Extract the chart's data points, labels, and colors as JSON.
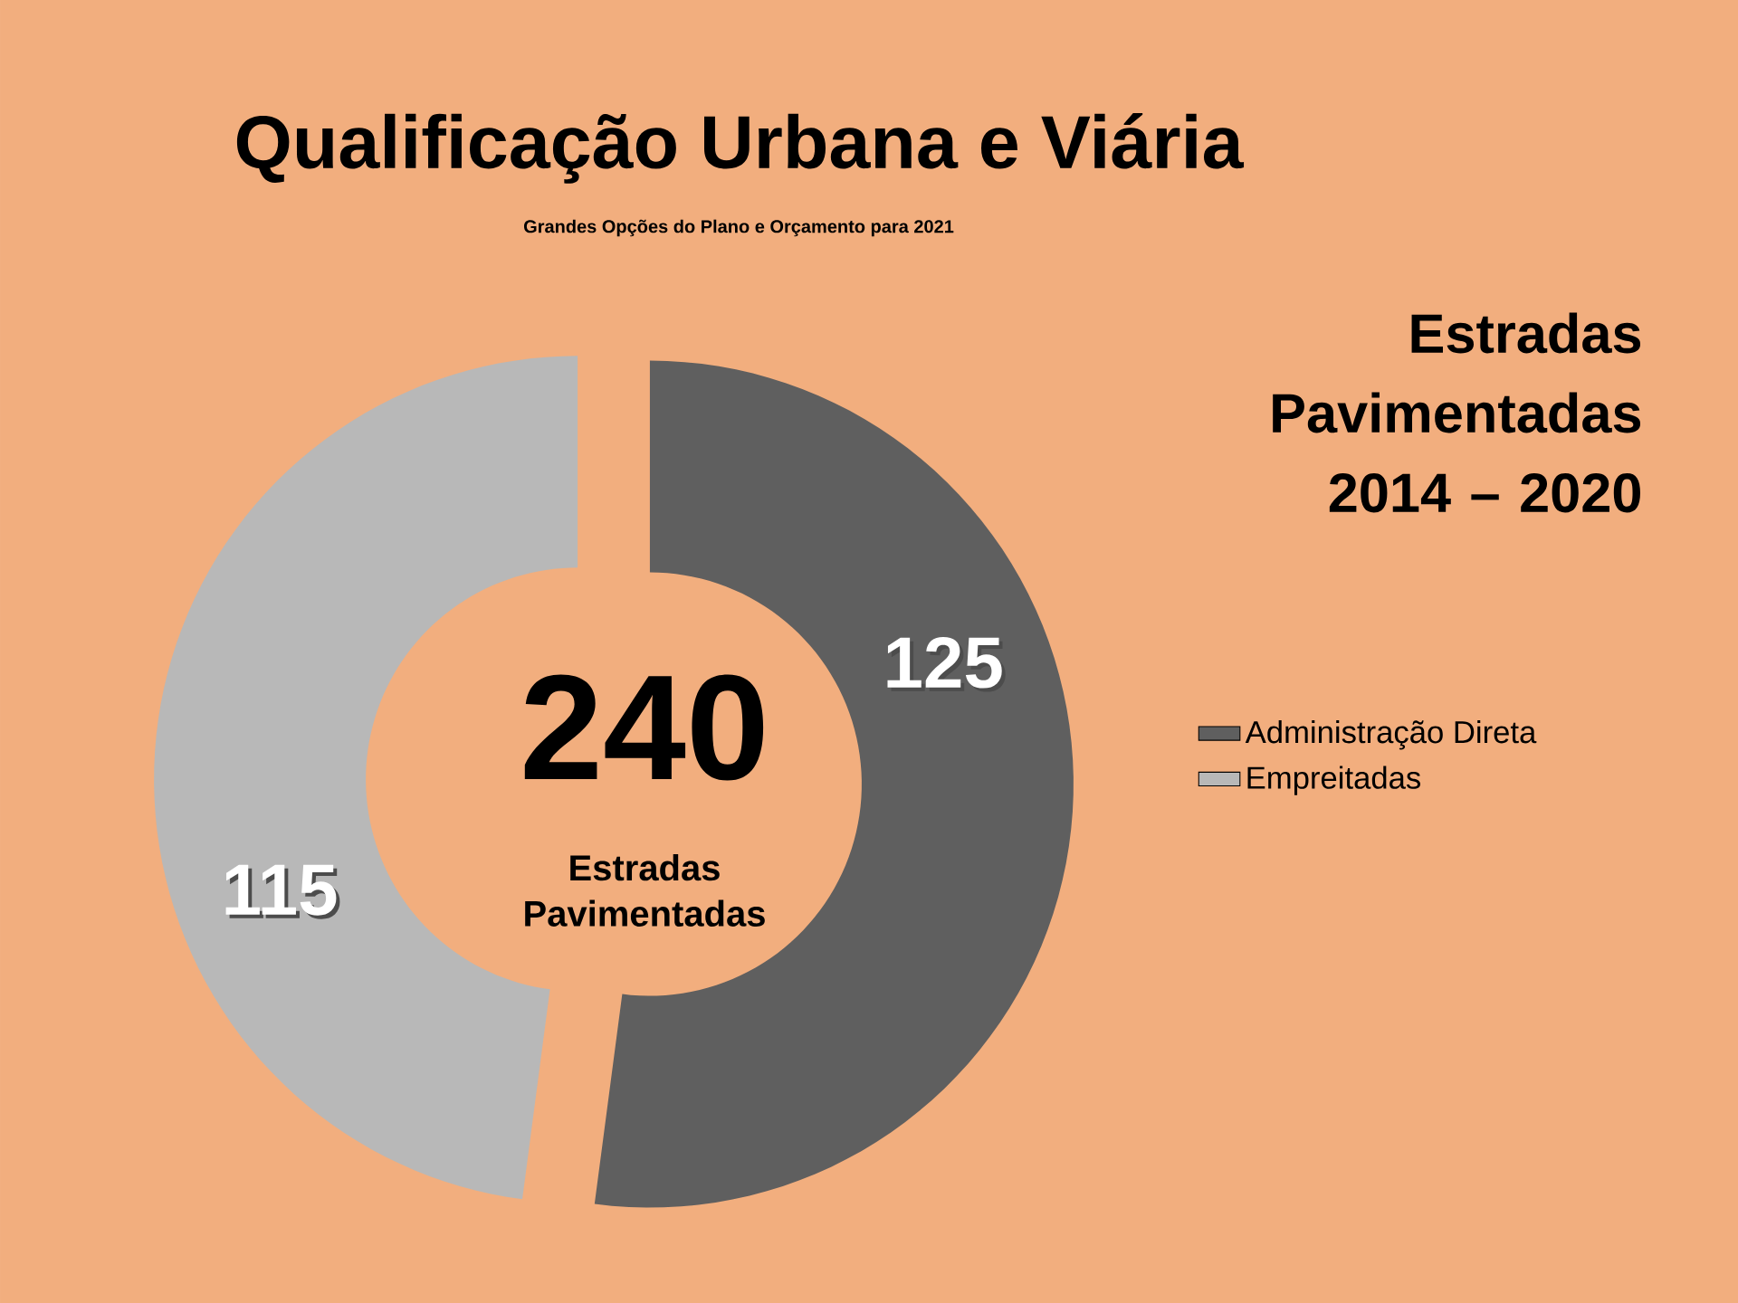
{
  "chart_data": {
    "type": "donut",
    "title": "Qualificação Urbana e Viária",
    "subtitle": "Grandes Opções do Plano e Orçamento para 2021",
    "categories": [
      "Administração Direta",
      "Empreitadas"
    ],
    "values": [
      125,
      115
    ],
    "colors": [
      "#5f5f5f",
      "#b8b8b8"
    ],
    "data_labels": true,
    "legend": "right",
    "annotations": [
      "Estradas Pavimentadas 2014 – 2020",
      "240",
      "Estradas Pavimentadas"
    ]
  }
}
